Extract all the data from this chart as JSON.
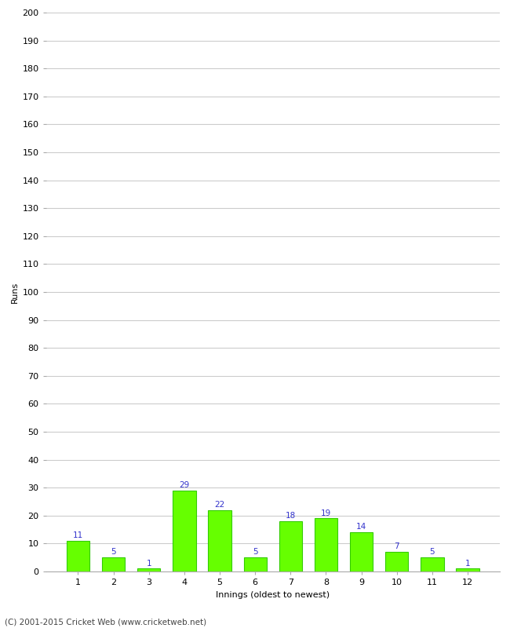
{
  "categories": [
    1,
    2,
    3,
    4,
    5,
    6,
    7,
    8,
    9,
    10,
    11,
    12
  ],
  "values": [
    11,
    5,
    1,
    29,
    22,
    5,
    18,
    19,
    14,
    7,
    5,
    1
  ],
  "bar_color": "#66ff00",
  "bar_edge_color": "#33cc00",
  "label_color": "#3333cc",
  "ylabel": "Runs",
  "xlabel": "Innings (oldest to newest)",
  "ylim": [
    0,
    200
  ],
  "yticks": [
    0,
    10,
    20,
    30,
    40,
    50,
    60,
    70,
    80,
    90,
    100,
    110,
    120,
    130,
    140,
    150,
    160,
    170,
    180,
    190,
    200
  ],
  "footer": "(C) 2001-2015 Cricket Web (www.cricketweb.net)",
  "background_color": "#ffffff",
  "grid_color": "#cccccc",
  "label_fontsize": 7.5,
  "axis_fontsize": 8,
  "footer_fontsize": 7.5,
  "bar_width": 0.65
}
